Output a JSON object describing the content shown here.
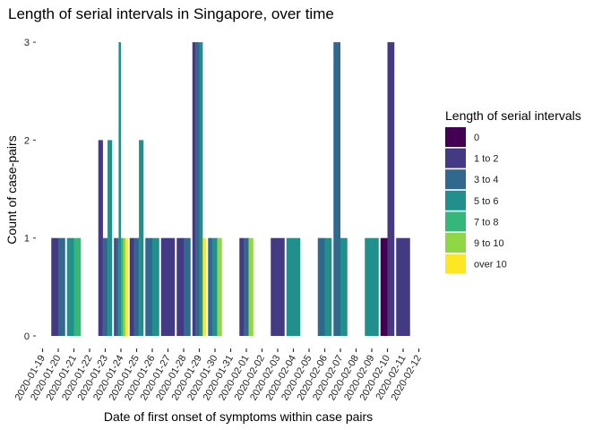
{
  "chart_data": {
    "type": "bar",
    "stacking": "dodge",
    "title": "Length of serial intervals in Singapore, over time",
    "xlabel": "Date of first onset of symptoms within case pairs",
    "ylabel": "Count of case-pairs",
    "ylim": [
      0,
      3
    ],
    "yticks": [
      0,
      1,
      2,
      3
    ],
    "grid": false,
    "legend_position": "right",
    "categories": [
      "2020-01-19",
      "2020-01-20",
      "2020-01-21",
      "2020-01-22",
      "2020-01-23",
      "2020-01-24",
      "2020-01-25",
      "2020-01-26",
      "2020-01-27",
      "2020-01-28",
      "2020-01-29",
      "2020-01-30",
      "2020-01-31",
      "2020-02-01",
      "2020-02-02",
      "2020-02-03",
      "2020-02-04",
      "2020-02-05",
      "2020-02-06",
      "2020-02-07",
      "2020-02-08",
      "2020-02-09",
      "2020-02-10",
      "2020-02-11",
      "2020-02-12"
    ],
    "legend": {
      "title": "Length of serial intervals",
      "entries": [
        {
          "label": "0",
          "color": "#440154"
        },
        {
          "label": "1 to 2",
          "color": "#443A83"
        },
        {
          "label": "3 to 4",
          "color": "#31688E"
        },
        {
          "label": "5 to 6",
          "color": "#21908C"
        },
        {
          "label": "7 to 8",
          "color": "#35B779"
        },
        {
          "label": "9 to 10",
          "color": "#8FD744"
        },
        {
          "label": "over 10",
          "color": "#FDE725"
        }
      ]
    },
    "bars": [
      {
        "date": "2020-01-20",
        "groups": [
          "1 to 2",
          "3 to 4"
        ],
        "values": [
          1,
          1
        ]
      },
      {
        "date": "2020-01-21",
        "groups": [
          "5 to 6",
          "7 to 8"
        ],
        "values": [
          1,
          1
        ]
      },
      {
        "date": "2020-01-23",
        "groups": [
          "1 to 2",
          "3 to 4",
          "5 to 6"
        ],
        "values": [
          2,
          1,
          2
        ]
      },
      {
        "date": "2020-01-24",
        "groups": [
          "1 to 2",
          "3 to 4",
          "5 to 6",
          "7 to 8",
          "9 to 10",
          "over 10"
        ],
        "values": [
          1,
          1,
          3,
          1,
          1,
          1
        ]
      },
      {
        "date": "2020-01-25",
        "groups": [
          "1 to 2",
          "3 to 4",
          "5 to 6"
        ],
        "values": [
          1,
          1,
          2
        ]
      },
      {
        "date": "2020-01-26",
        "groups": [
          "3 to 4",
          "5 to 6"
        ],
        "values": [
          1,
          1
        ]
      },
      {
        "date": "2020-01-27",
        "groups": [
          "1 to 2"
        ],
        "values": [
          1
        ]
      },
      {
        "date": "2020-01-28",
        "groups": [
          "1 to 2",
          "3 to 4"
        ],
        "values": [
          1,
          1
        ]
      },
      {
        "date": "2020-01-29",
        "groups": [
          "1 to 2",
          "3 to 4",
          "5 to 6",
          "over 10"
        ],
        "values": [
          3,
          3,
          3,
          1
        ]
      },
      {
        "date": "2020-01-30",
        "groups": [
          "3 to 4",
          "5 to 6",
          "9 to 10"
        ],
        "values": [
          1,
          1,
          1
        ]
      },
      {
        "date": "2020-02-01",
        "groups": [
          "1 to 2",
          "3 to 4",
          "9 to 10"
        ],
        "values": [
          1,
          1,
          1
        ]
      },
      {
        "date": "2020-02-03",
        "groups": [
          "1 to 2"
        ],
        "values": [
          1
        ]
      },
      {
        "date": "2020-02-04",
        "groups": [
          "5 to 6"
        ],
        "values": [
          1
        ]
      },
      {
        "date": "2020-02-06",
        "groups": [
          "3 to 4",
          "5 to 6"
        ],
        "values": [
          1,
          1
        ]
      },
      {
        "date": "2020-02-07",
        "groups": [
          "3 to 4",
          "5 to 6"
        ],
        "values": [
          3,
          1
        ]
      },
      {
        "date": "2020-02-09",
        "groups": [
          "5 to 6"
        ],
        "values": [
          1
        ]
      },
      {
        "date": "2020-02-10",
        "groups": [
          "0",
          "1 to 2"
        ],
        "values": [
          1,
          3
        ]
      },
      {
        "date": "2020-02-11",
        "groups": [
          "1 to 2"
        ],
        "values": [
          1
        ]
      }
    ]
  }
}
